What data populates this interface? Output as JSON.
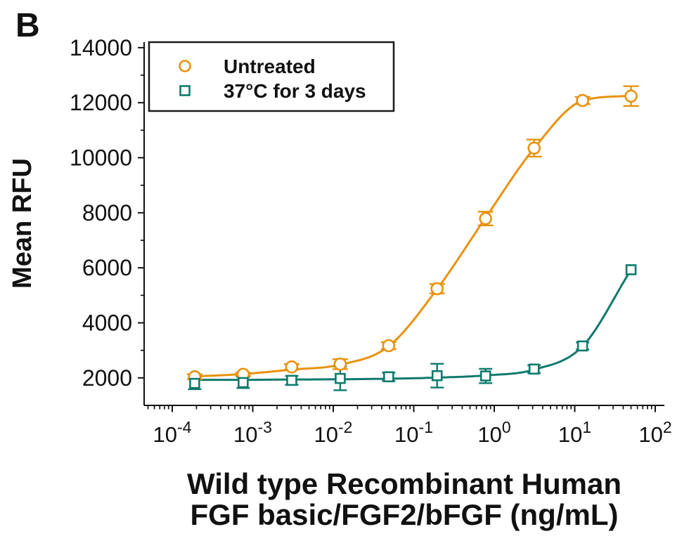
{
  "panel_label": "B",
  "colors": {
    "untreated": "#E8920D",
    "treated": "#0E7A6C",
    "axis": "#111111"
  },
  "chart_data": {
    "type": "scatter",
    "x_scale": "log",
    "grid": false,
    "legend_position": "top-left",
    "xlabel": [
      "Wild type Recombinant Human",
      "FGF basic/FGF2/bFGF (ng/mL)"
    ],
    "ylabel": "Mean RFU",
    "xlim": [
      4.5e-05,
      129
    ],
    "ylim": [
      1000,
      14200
    ],
    "x_major_tick_exponents": [
      -4,
      -3,
      -2,
      -1,
      0,
      1,
      2
    ],
    "x_tick_base": "10",
    "y_major_ticks": [
      2000,
      4000,
      6000,
      8000,
      10000,
      12000,
      14000
    ],
    "y_minor_ticks": [
      3000,
      5000,
      7000,
      9000,
      11000,
      13000
    ],
    "series": [
      {
        "name": "Untreated",
        "marker": "circle",
        "color": "#E8920D",
        "x": [
          0.00019,
          0.00076,
          0.00305,
          0.0122,
          0.0488,
          0.195,
          0.781,
          3.125,
          12.5,
          50
        ],
        "y": [
          2040,
          2130,
          2400,
          2500,
          3170,
          5240,
          7790,
          10350,
          12080,
          12240
        ],
        "y_err": [
          90,
          60,
          100,
          180,
          130,
          170,
          250,
          310,
          130,
          360
        ],
        "fit_curve_y": [
          2050,
          2140,
          2300,
          2480,
          3150,
          5230,
          7820,
          10340,
          12070,
          12250
        ]
      },
      {
        "name": "37°C for 3 days",
        "marker": "square",
        "color": "#0E7A6C",
        "x": [
          0.00019,
          0.00076,
          0.00305,
          0.0122,
          0.0488,
          0.195,
          0.781,
          3.125,
          12.5,
          50
        ],
        "y": [
          1800,
          1830,
          1910,
          1980,
          2040,
          2080,
          2070,
          2320,
          3160,
          5930
        ],
        "y_err": [
          210,
          200,
          160,
          430,
          150,
          430,
          260,
          140,
          130,
          0
        ],
        "fit_curve_y": [
          1930,
          1930,
          1940,
          1950,
          1970,
          2010,
          2090,
          2300,
          3150,
          5930
        ]
      }
    ]
  }
}
